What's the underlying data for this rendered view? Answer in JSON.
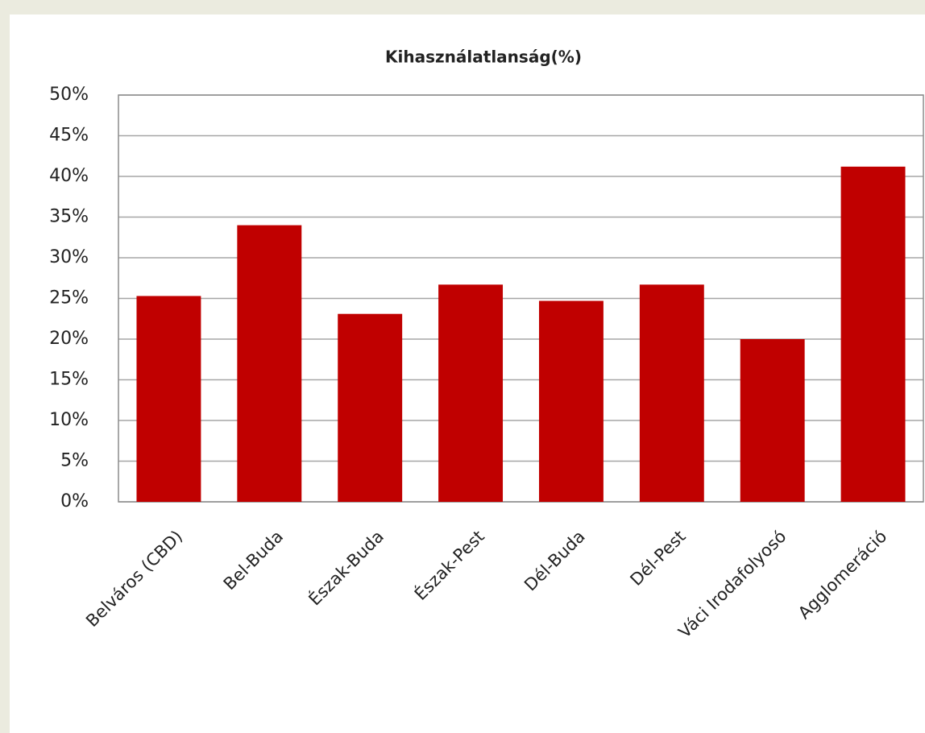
{
  "chart_data": {
    "type": "bar",
    "title": "Kihasználatlanság(%)",
    "categories": [
      "Belváros (CBD)",
      "Bel-Buda",
      "Észak-Buda",
      "Észak-Pest",
      "Dél-Buda",
      "Dél-Pest",
      "Váci Irodafolyosó",
      "Agglomeráció"
    ],
    "values": [
      25.3,
      34,
      23.1,
      26.7,
      24.7,
      26.7,
      20,
      41.2
    ],
    "color": "#c00000",
    "ylim": [
      0,
      50
    ],
    "yticks": [
      {
        "value": 0,
        "label": "0%"
      },
      {
        "value": 5,
        "label": "5%"
      },
      {
        "value": 10,
        "label": "10%"
      },
      {
        "value": 15,
        "label": "15%"
      },
      {
        "value": 20,
        "label": "20%"
      },
      {
        "value": 25,
        "label": "25%"
      },
      {
        "value": 30,
        "label": "30%"
      },
      {
        "value": 35,
        "label": "35%"
      },
      {
        "value": 40,
        "label": "40%"
      },
      {
        "value": 45,
        "label": "45%"
      },
      {
        "value": 50,
        "label": "50%"
      }
    ],
    "grid": true
  }
}
